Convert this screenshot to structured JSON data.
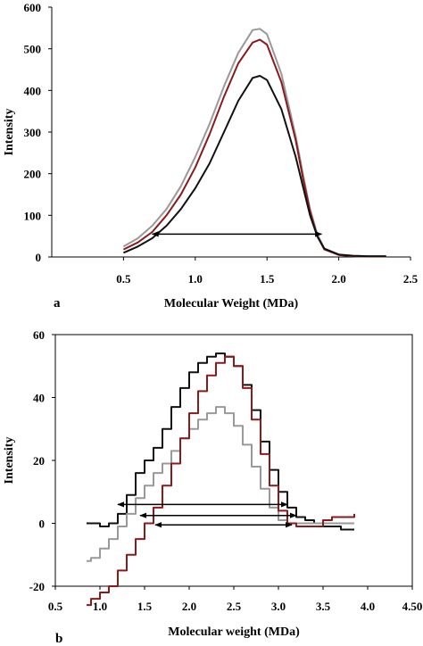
{
  "chart_data": [
    {
      "panel_label": "a",
      "type": "line",
      "xlabel": "Molecular Weight (MDa)",
      "ylabel": "Intensity",
      "xlim": [
        0.0,
        2.5
      ],
      "ylim": [
        0,
        600
      ],
      "xticks": [
        0.5,
        1.0,
        1.5,
        2.0,
        2.5
      ],
      "xtick_labels": [
        "0.5",
        "1.0",
        "1.5",
        "2.0",
        "2.5"
      ],
      "yticks": [
        0,
        100,
        200,
        300,
        400,
        500,
        600
      ],
      "ytick_labels": [
        "0",
        "100",
        "200",
        "300",
        "400",
        "500",
        "600"
      ],
      "grid": false,
      "series": [
        {
          "color": "#999999",
          "step": false,
          "x": [
            0.5,
            0.6,
            0.7,
            0.8,
            0.9,
            1.0,
            1.1,
            1.2,
            1.3,
            1.4,
            1.45,
            1.5,
            1.6,
            1.7,
            1.75,
            1.8,
            1.85,
            1.9,
            2.0,
            2.1,
            2.2,
            2.33
          ],
          "y": [
            25,
            45,
            75,
            115,
            170,
            240,
            320,
            410,
            490,
            545,
            548,
            535,
            440,
            290,
            200,
            115,
            55,
            20,
            5,
            2,
            1,
            1
          ]
        },
        {
          "color": "#8b1a1a",
          "step": false,
          "x": [
            0.5,
            0.6,
            0.7,
            0.8,
            0.9,
            1.0,
            1.1,
            1.2,
            1.3,
            1.4,
            1.45,
            1.5,
            1.6,
            1.7,
            1.75,
            1.8,
            1.85,
            1.9,
            2.0,
            2.1,
            2.2,
            2.33
          ],
          "y": [
            18,
            35,
            60,
            100,
            150,
            215,
            295,
            385,
            465,
            515,
            522,
            510,
            420,
            280,
            190,
            110,
            50,
            18,
            5,
            2,
            1,
            1
          ]
        },
        {
          "color": "#111111",
          "step": false,
          "x": [
            0.5,
            0.6,
            0.7,
            0.8,
            0.9,
            1.0,
            1.1,
            1.2,
            1.3,
            1.4,
            1.45,
            1.5,
            1.6,
            1.7,
            1.75,
            1.8,
            1.85,
            1.9,
            2.0,
            2.1,
            2.2,
            2.33
          ],
          "y": [
            10,
            25,
            45,
            75,
            115,
            165,
            225,
            300,
            375,
            430,
            435,
            425,
            355,
            240,
            170,
            100,
            50,
            20,
            6,
            3,
            2,
            2
          ]
        }
      ],
      "arrows": [
        {
          "x_start": 0.7,
          "x_end": 1.88,
          "y": 55
        }
      ]
    },
    {
      "panel_label": "b",
      "type": "line",
      "xlabel": "Molecular weight (MDa)",
      "ylabel": "Intensity",
      "xlim": [
        0.5,
        4.5
      ],
      "ylim": [
        -20,
        60
      ],
      "xticks": [
        0.5,
        1.0,
        1.5,
        2.0,
        2.5,
        3.0,
        3.5,
        4.0,
        4.5
      ],
      "xtick_labels": [
        "0.5",
        "1.0",
        "1.5",
        "2.0",
        "2.5",
        "3.0",
        "3.5",
        "4.0",
        "4.50"
      ],
      "yticks": [
        -20,
        0,
        20,
        40,
        60
      ],
      "ytick_labels": [
        "-20",
        "0",
        "20",
        "40",
        "60"
      ],
      "grid": false,
      "series": [
        {
          "color": "#111111",
          "step": true,
          "x": [
            0.85,
            0.9,
            1.0,
            1.1,
            1.2,
            1.3,
            1.4,
            1.5,
            1.6,
            1.7,
            1.8,
            1.9,
            2.0,
            2.1,
            2.2,
            2.3,
            2.4,
            2.5,
            2.6,
            2.7,
            2.8,
            2.9,
            3.0,
            3.1,
            3.2,
            3.3,
            3.4,
            3.5,
            3.6,
            3.7,
            3.8,
            3.85
          ],
          "y": [
            0,
            0,
            -1,
            0,
            3,
            9,
            16,
            20,
            24,
            30,
            37,
            43,
            48,
            51,
            53,
            54,
            53,
            50,
            44,
            36,
            26,
            17,
            10,
            5,
            2,
            1,
            0,
            -1,
            -1,
            -2,
            -2,
            -2
          ]
        },
        {
          "color": "#999999",
          "step": true,
          "x": [
            0.85,
            0.9,
            1.0,
            1.1,
            1.2,
            1.3,
            1.4,
            1.5,
            1.6,
            1.7,
            1.8,
            1.9,
            2.0,
            2.1,
            2.2,
            2.3,
            2.4,
            2.5,
            2.6,
            2.7,
            2.8,
            2.9,
            3.0,
            3.1,
            3.2,
            3.3,
            3.4,
            3.5,
            3.6,
            3.7,
            3.8,
            3.85
          ],
          "y": [
            -12,
            -11,
            -8,
            -5,
            -1,
            3,
            8,
            12,
            16,
            19,
            23,
            27,
            30,
            33,
            35,
            37,
            35,
            31,
            25,
            18,
            11,
            5,
            1,
            0,
            0,
            0,
            0,
            0,
            0,
            0,
            0,
            0
          ]
        },
        {
          "color": "#8b1a1a",
          "step": true,
          "x": [
            0.85,
            0.9,
            1.0,
            1.1,
            1.2,
            1.3,
            1.4,
            1.5,
            1.6,
            1.7,
            1.8,
            1.9,
            2.0,
            2.1,
            2.2,
            2.3,
            2.4,
            2.5,
            2.6,
            2.7,
            2.8,
            2.9,
            3.0,
            3.1,
            3.2,
            3.3,
            3.4,
            3.5,
            3.6,
            3.7,
            3.8,
            3.85
          ],
          "y": [
            -26,
            -24,
            -22,
            -20,
            -15,
            -10,
            -5,
            0,
            5,
            12,
            19,
            27,
            35,
            42,
            47,
            51,
            53,
            50,
            43,
            33,
            22,
            12,
            4,
            0,
            -1,
            -1,
            -1,
            1,
            2,
            2,
            2,
            3
          ]
        }
      ],
      "arrows": [
        {
          "x_start": 1.2,
          "x_end": 3.1,
          "y": 6
        },
        {
          "x_start": 1.45,
          "x_end": 3.2,
          "y": 2.5
        },
        {
          "x_start": 1.62,
          "x_end": 3.15,
          "y": -0.5
        }
      ]
    }
  ]
}
